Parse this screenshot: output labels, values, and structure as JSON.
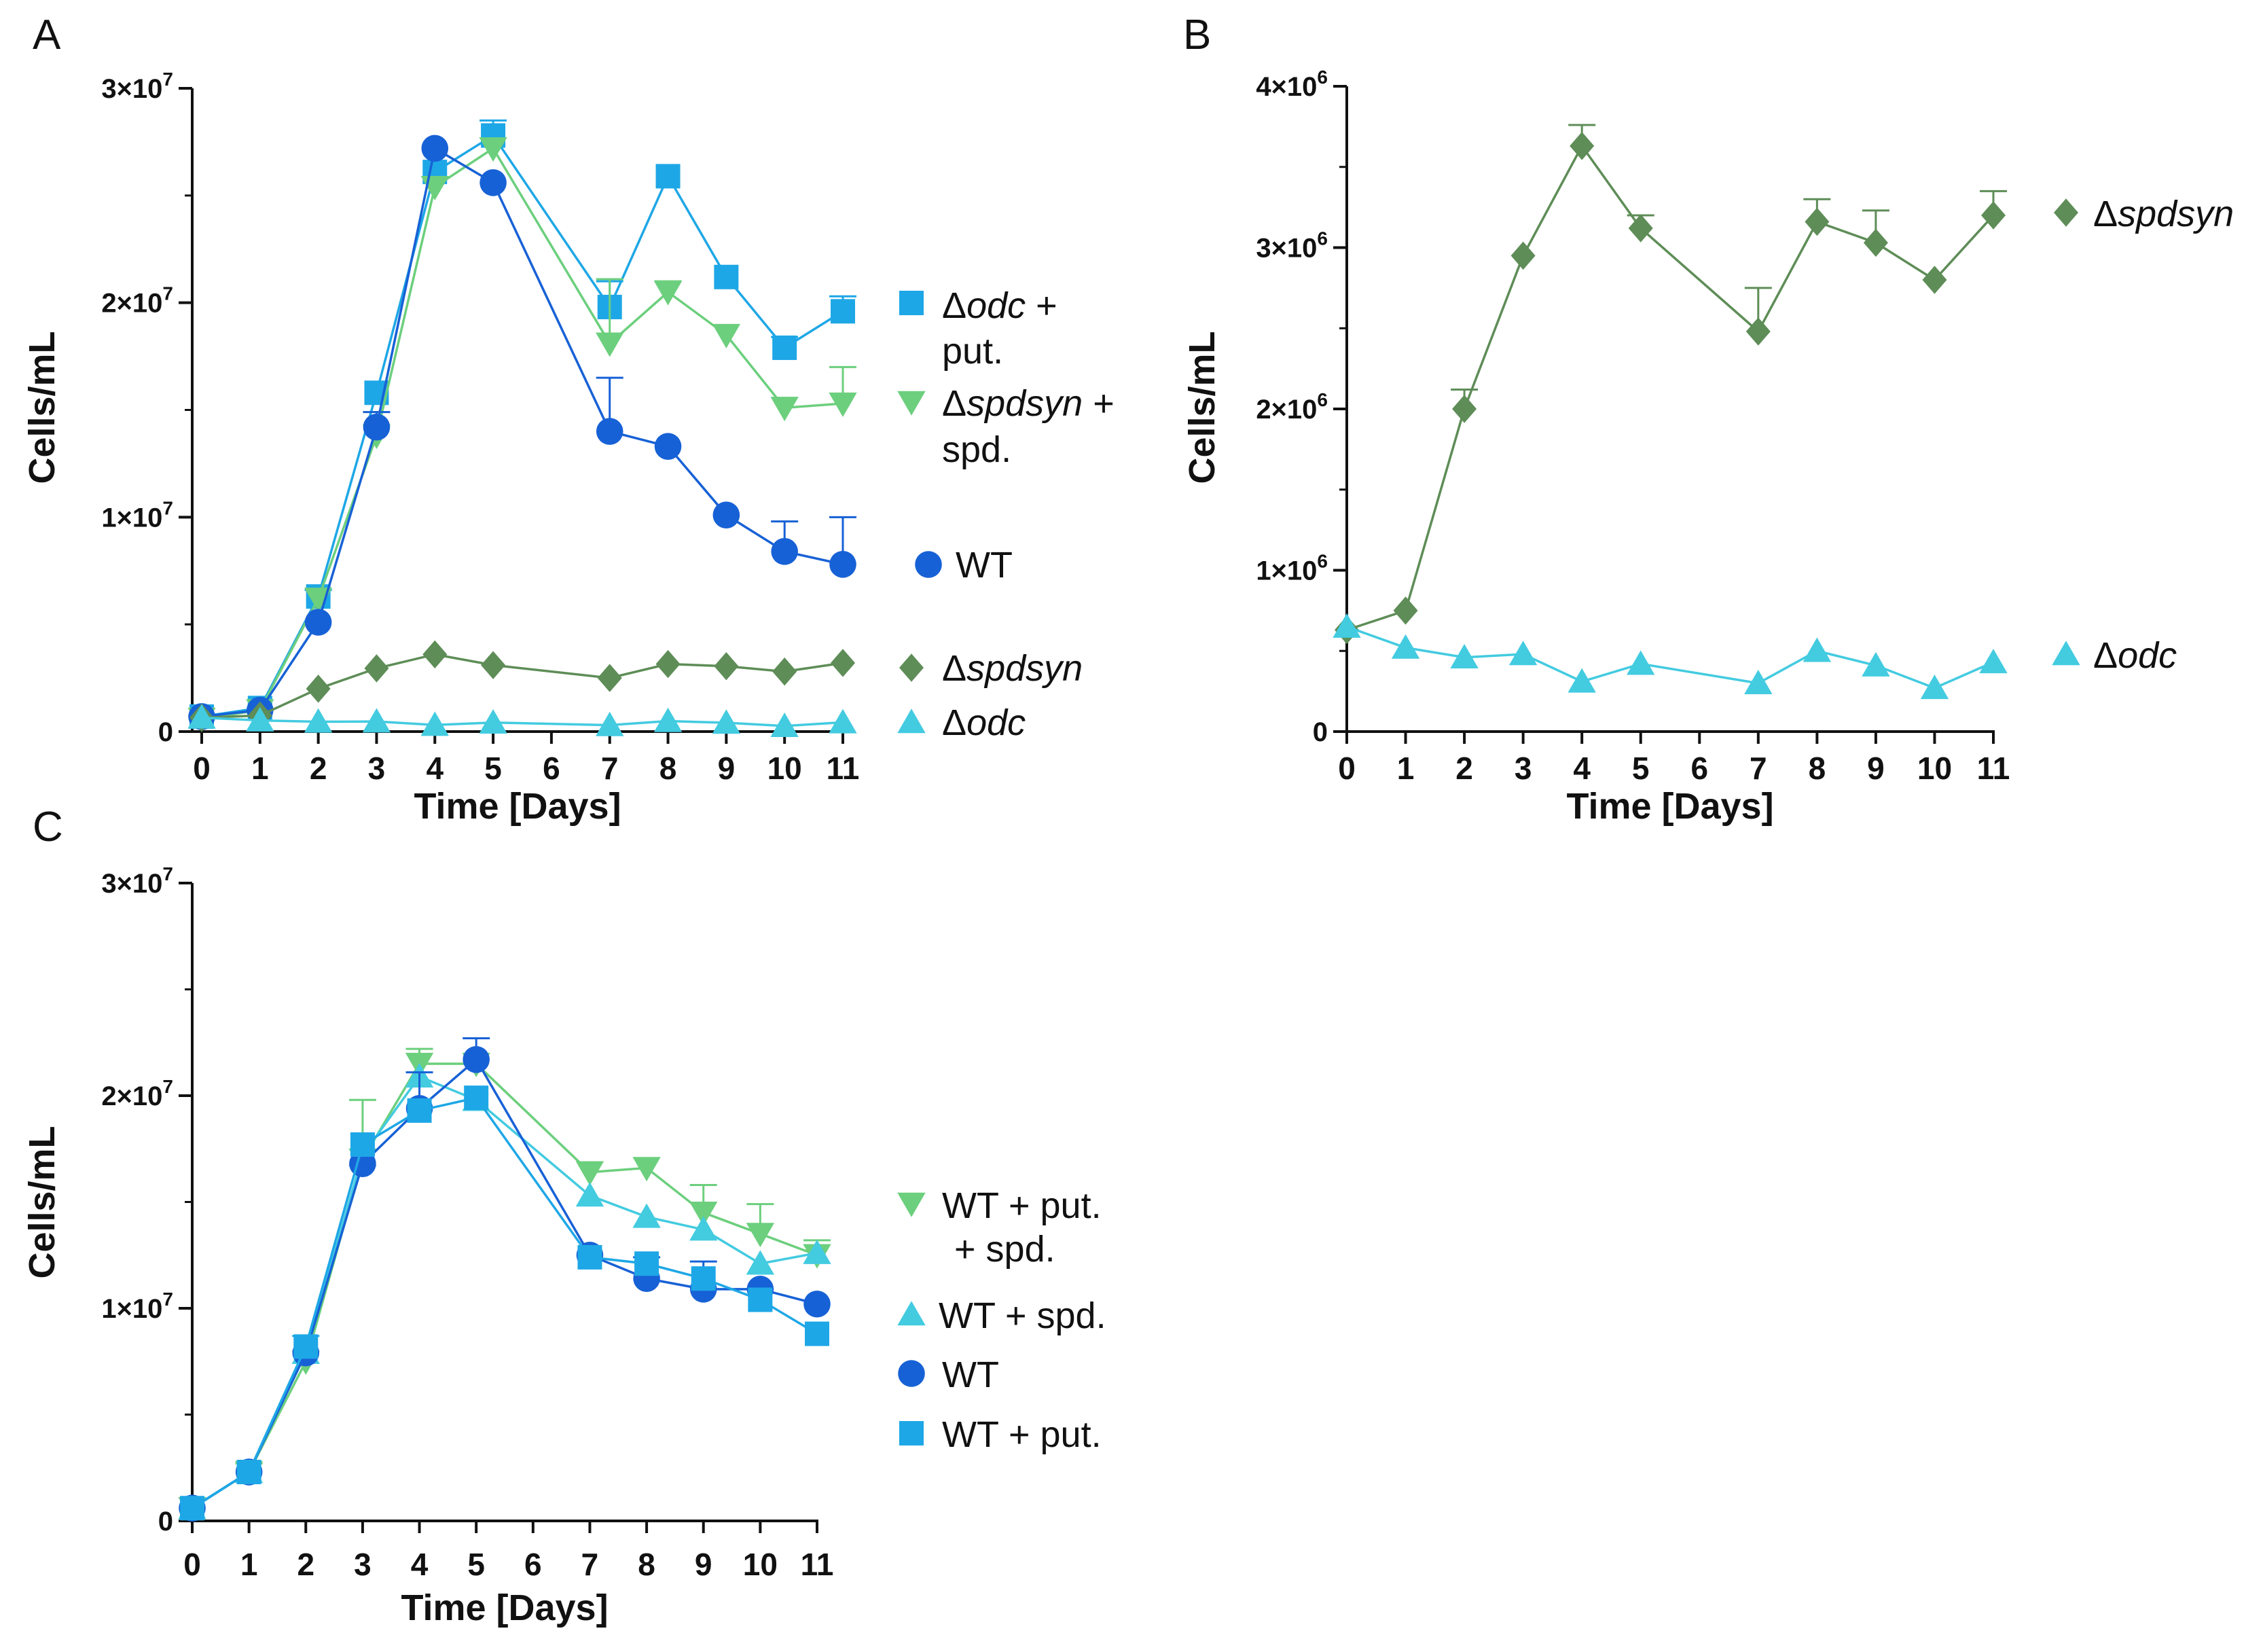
{
  "chart_data": [
    {
      "panel": "A",
      "type": "line",
      "title": "",
      "xlabel": "Time [Days]",
      "ylabel": "Cells/mL",
      "xlim": [
        0,
        11
      ],
      "ylim": [
        0,
        30000000
      ],
      "x_ticks": [
        "0",
        "1",
        "2",
        "3",
        "4",
        "5",
        "6",
        "7",
        "8",
        "9",
        "10",
        "11"
      ],
      "y_ticks": [
        {
          "value": 0,
          "base": "0",
          "exp": ""
        },
        {
          "value": 10000000,
          "base": "1×10",
          "exp": "7"
        },
        {
          "value": 20000000,
          "base": "2×10",
          "exp": "7"
        },
        {
          "value": 30000000,
          "base": "3×10",
          "exp": "7"
        }
      ],
      "series": [
        {
          "key": "odc_put",
          "legend": [
            "Δ",
            "odc",
            " +",
            "put."
          ],
          "marker": "square",
          "color": "#1ea7e6",
          "x": [
            0,
            1,
            2,
            3,
            4,
            5,
            7,
            8,
            9,
            10,
            11
          ],
          "values": [
            700000,
            1100000,
            6300000,
            15800000,
            26100000,
            27800000,
            19800000,
            25900000,
            21200000,
            17900000,
            19600000
          ],
          "errors": [
            0,
            0,
            300000,
            0,
            0,
            700000,
            1200000,
            0,
            0,
            500000,
            700000
          ]
        },
        {
          "key": "spdsyn_spd",
          "legend": [
            "Δ",
            "spdsyn",
            " +",
            "spd."
          ],
          "marker": "triangle-down",
          "color": "#6ccf7d",
          "x": [
            0,
            1,
            2,
            3,
            4,
            5,
            7,
            8,
            9,
            10,
            11
          ],
          "values": [
            600000,
            1000000,
            6200000,
            13800000,
            25400000,
            27200000,
            18100000,
            20500000,
            18500000,
            15100000,
            15300000
          ],
          "errors": [
            0,
            0,
            0,
            0,
            0,
            0,
            3000000,
            500000,
            0,
            0,
            1700000
          ]
        },
        {
          "key": "wt",
          "legend": [
            "",
            "WT",
            "",
            ""
          ],
          "marker": "circle",
          "color": "#1761d6",
          "x": [
            0,
            1,
            2,
            3,
            4,
            5,
            7,
            8,
            9,
            10,
            11
          ],
          "values": [
            700000,
            1000000,
            5100000,
            14200000,
            27200000,
            25600000,
            14000000,
            13300000,
            10100000,
            8400000,
            7800000
          ],
          "errors": [
            0,
            0,
            0,
            700000,
            0,
            0,
            2500000,
            0,
            0,
            1400000,
            2200000
          ]
        },
        {
          "key": "spdsyn",
          "legend": [
            "Δ",
            "spdsyn",
            "",
            ""
          ],
          "marker": "diamond",
          "color": "#5e8d57",
          "x": [
            0,
            1,
            2,
            3,
            4,
            5,
            7,
            8,
            9,
            10,
            11
          ],
          "values": [
            650000,
            750000,
            2000000,
            2950000,
            3600000,
            3100000,
            2500000,
            3150000,
            3050000,
            2800000,
            3200000
          ],
          "errors": [
            0,
            0,
            0,
            0,
            0,
            0,
            0,
            0,
            0,
            0,
            0
          ]
        },
        {
          "key": "odc",
          "legend": [
            "Δ",
            "odc",
            "",
            ""
          ],
          "marker": "triangle-up",
          "color": "#43cbe0",
          "x": [
            0,
            1,
            2,
            3,
            4,
            5,
            7,
            8,
            9,
            10,
            11
          ],
          "values": [
            650000,
            520000,
            460000,
            470000,
            310000,
            420000,
            300000,
            490000,
            410000,
            260000,
            430000
          ],
          "errors": [
            0,
            0,
            0,
            0,
            0,
            0,
            0,
            0,
            0,
            0,
            0
          ]
        }
      ]
    },
    {
      "panel": "B",
      "type": "line",
      "title": "",
      "xlabel": "Time [Days]",
      "ylabel": "Cells/mL",
      "xlim": [
        0,
        11
      ],
      "ylim": [
        0,
        4000000
      ],
      "x_ticks": [
        "0",
        "1",
        "2",
        "3",
        "4",
        "5",
        "6",
        "7",
        "8",
        "9",
        "10",
        "11"
      ],
      "y_ticks": [
        {
          "value": 0,
          "base": "0",
          "exp": ""
        },
        {
          "value": 1000000,
          "base": "1×10",
          "exp": "6"
        },
        {
          "value": 2000000,
          "base": "2×10",
          "exp": "6"
        },
        {
          "value": 3000000,
          "base": "3×10",
          "exp": "6"
        },
        {
          "value": 4000000,
          "base": "4×10",
          "exp": "6"
        }
      ],
      "series": [
        {
          "key": "spdsyn",
          "legend": [
            "Δ",
            "spdsyn",
            "",
            ""
          ],
          "marker": "diamond",
          "color": "#5e8d57",
          "x": [
            0,
            1,
            2,
            3,
            4,
            5,
            7,
            8,
            9,
            10,
            11
          ],
          "values": [
            630000,
            750000,
            2000000,
            2950000,
            3630000,
            3120000,
            2480000,
            3160000,
            3030000,
            2800000,
            3200000
          ],
          "errors": [
            0,
            0,
            120000,
            0,
            130000,
            80000,
            270000,
            140000,
            200000,
            0,
            150000
          ]
        },
        {
          "key": "odc",
          "legend": [
            "Δ",
            "odc",
            "",
            ""
          ],
          "marker": "triangle-up",
          "color": "#43cbe0",
          "x": [
            0,
            1,
            2,
            3,
            4,
            5,
            7,
            8,
            9,
            10,
            11
          ],
          "values": [
            650000,
            520000,
            460000,
            480000,
            310000,
            420000,
            300000,
            500000,
            410000,
            270000,
            430000
          ],
          "errors": [
            0,
            0,
            0,
            0,
            0,
            0,
            0,
            0,
            0,
            0,
            0
          ]
        }
      ]
    },
    {
      "panel": "C",
      "type": "line",
      "title": "",
      "xlabel": "Time [Days]",
      "ylabel": "Cells/mL",
      "xlim": [
        0,
        11
      ],
      "ylim": [
        0,
        30000000
      ],
      "x_ticks": [
        "0",
        "1",
        "2",
        "3",
        "4",
        "5",
        "6",
        "7",
        "8",
        "9",
        "10",
        "11"
      ],
      "y_ticks": [
        {
          "value": 0,
          "base": "0",
          "exp": ""
        },
        {
          "value": 10000000,
          "base": "1×10",
          "exp": "7"
        },
        {
          "value": 20000000,
          "base": "2×10",
          "exp": "7"
        },
        {
          "value": 30000000,
          "base": "3×10",
          "exp": "7"
        }
      ],
      "series": [
        {
          "key": "wt_put_spd",
          "legend": [
            "",
            "WT + put.",
            "",
            "+ spd."
          ],
          "marker": "triangle-down",
          "color": "#6ccf7d",
          "x": [
            0,
            1,
            2,
            3,
            4,
            5,
            7,
            8,
            9,
            10,
            11
          ],
          "values": [
            600000,
            2300000,
            7500000,
            17000000,
            21500000,
            21500000,
            16400000,
            16600000,
            14500000,
            13500000,
            12500000
          ],
          "errors": [
            0,
            400000,
            0,
            2800000,
            700000,
            0,
            0,
            0,
            1300000,
            1400000,
            700000
          ]
        },
        {
          "key": "wt_spd",
          "legend": [
            "",
            "WT + spd.",
            "",
            ""
          ],
          "marker": "triangle-up",
          "color": "#43cbe0",
          "x": [
            0,
            1,
            2,
            3,
            4,
            5,
            7,
            8,
            9,
            10,
            11
          ],
          "values": [
            600000,
            2300000,
            7900000,
            17200000,
            20900000,
            19800000,
            15300000,
            14300000,
            13700000,
            12100000,
            12600000
          ],
          "errors": [
            0,
            0,
            0,
            0,
            0,
            0,
            0,
            0,
            0,
            0,
            0
          ]
        },
        {
          "key": "wt",
          "legend": [
            "",
            "WT",
            "",
            ""
          ],
          "marker": "circle",
          "color": "#1761d6",
          "x": [
            0,
            1,
            2,
            3,
            4,
            5,
            7,
            8,
            9,
            10,
            11
          ],
          "values": [
            600000,
            2300000,
            7900000,
            16800000,
            19400000,
            21700000,
            12500000,
            11400000,
            10900000,
            10900000,
            10200000
          ],
          "errors": [
            0,
            0,
            0,
            0,
            1700000,
            1000000,
            0,
            1000000,
            1300000,
            0,
            0
          ]
        },
        {
          "key": "wt_put",
          "legend": [
            "",
            "WT + put.",
            "",
            ""
          ],
          "marker": "square",
          "color": "#1ea7e6",
          "x": [
            0,
            1,
            2,
            3,
            4,
            5,
            7,
            8,
            9,
            10,
            11
          ],
          "values": [
            600000,
            2300000,
            8200000,
            17700000,
            19300000,
            19900000,
            12400000,
            12100000,
            11400000,
            10400000,
            8800000
          ],
          "errors": [
            0,
            0,
            500000,
            0,
            0,
            0,
            0,
            0,
            0,
            0,
            0
          ]
        }
      ]
    }
  ]
}
